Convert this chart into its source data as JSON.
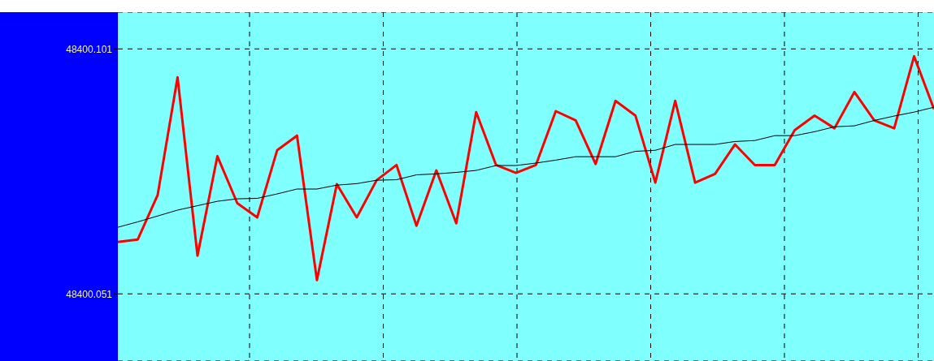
{
  "chart_data": {
    "type": "line",
    "categories": [
      null,
      null,
      null,
      null,
      null,
      null,
      null,
      null,
      null,
      null,
      null,
      null,
      null,
      null,
      null,
      null,
      null,
      null,
      null,
      null,
      null,
      null,
      null,
      null,
      null,
      null,
      null,
      null,
      null,
      null,
      null,
      null,
      null,
      null,
      null,
      null,
      null,
      null,
      null,
      null,
      null,
      null
    ],
    "series": [
      {
        "color": "#ff0000",
        "values": [
          48400.0616,
          48400.0621,
          48400.0712,
          48400.0952,
          48400.0588,
          48400.0791,
          48400.0695,
          48400.0666,
          48400.0803,
          48400.0833,
          48400.0538,
          48400.0734,
          48400.0666,
          48400.0742,
          48400.0773,
          48400.0649,
          48400.0762,
          48400.0654,
          48400.0881,
          48400.0773,
          48400.0757,
          48400.0773,
          48400.0883,
          48400.0864,
          48400.0775,
          48400.0904,
          48400.0874,
          48400.0737,
          48400.0904,
          48400.0737,
          48400.0755,
          48400.0815,
          48400.0773,
          48400.0773,
          48400.0844,
          48400.0874,
          48400.0848,
          48400.0922,
          48400.0864,
          48400.0848,
          48400.0995,
          48400.0887
        ]
      },
      {
        "color": "#000000",
        "values": [
          48400.0646,
          48400.0657,
          48400.0669,
          48400.0681,
          48400.069,
          48400.0699,
          48400.0704,
          48400.0705,
          48400.0714,
          48400.0724,
          48400.0724,
          48400.0732,
          48400.0735,
          48400.0742,
          48400.0743,
          48400.0753,
          48400.0755,
          48400.0758,
          48400.0762,
          48400.0772,
          48400.0772,
          48400.0777,
          48400.0783,
          48400.079,
          48400.079,
          48400.079,
          48400.0801,
          48400.0803,
          48400.0815,
          48400.0815,
          48400.0815,
          48400.0821,
          48400.0823,
          48400.0833,
          48400.0833,
          48400.0841,
          48400.0851,
          48400.0853,
          48400.0864,
          48400.0873,
          48400.0881,
          48400.0891
        ]
      }
    ],
    "ylim": [
      48400.0373,
      48400.1085
    ],
    "yticks": [
      48400.051,
      48400.101
    ],
    "grid": true,
    "tick_labels": "y"
  }
}
